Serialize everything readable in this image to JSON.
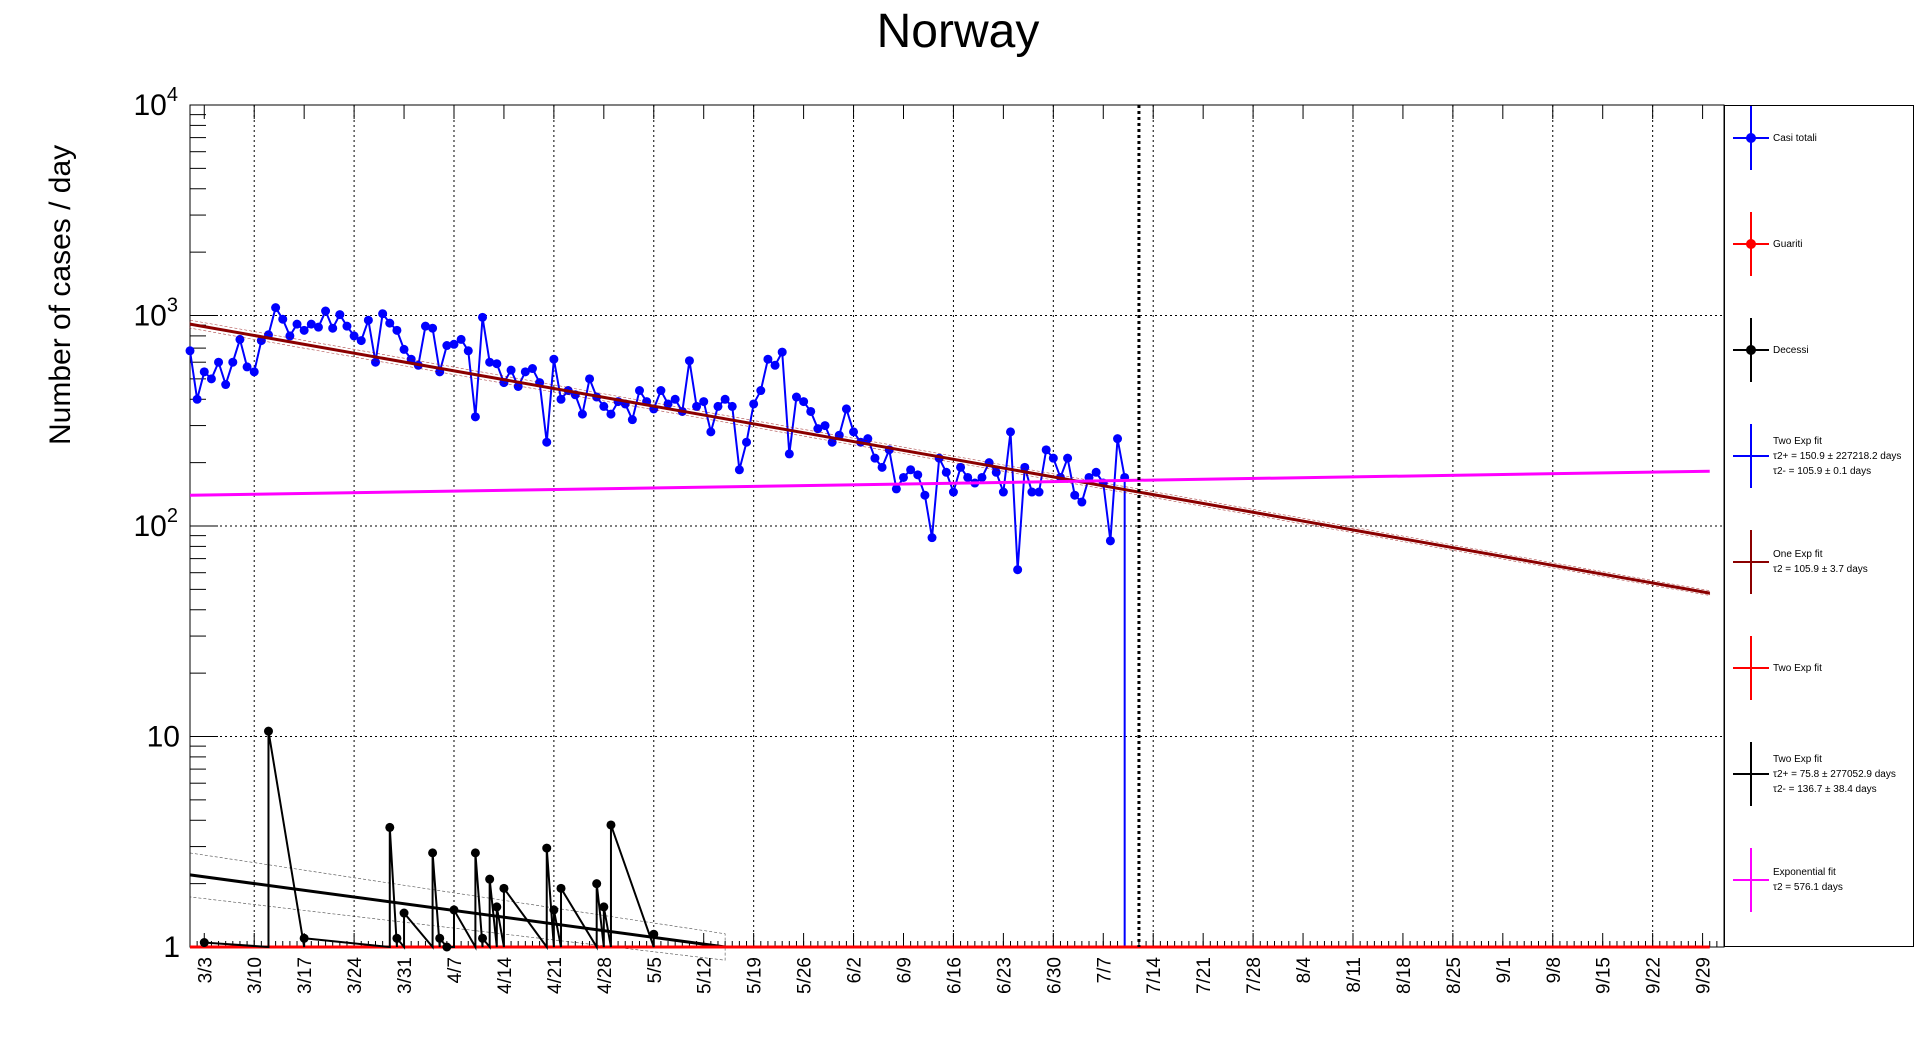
{
  "title": "Norway",
  "ylabel": "Number of cases / day",
  "legend": [
    {
      "label": "Casi totali",
      "lines": [],
      "color": "#0000ff",
      "marker": true,
      "icon": "blue-marker-icon"
    },
    {
      "label": "Guariti",
      "lines": [],
      "color": "#ff0000",
      "marker": true,
      "icon": "red-marker-icon"
    },
    {
      "label": "Decessi",
      "lines": [],
      "color": "#000000",
      "marker": true,
      "icon": "black-marker-icon"
    },
    {
      "label": "Two Exp fit",
      "lines": [
        "τ2+ = 150.9 ± 227218.2 days",
        "τ2- = 105.9 ± 0.1 days"
      ],
      "color": "#0000ff",
      "marker": false,
      "icon": "blue-line-icon"
    },
    {
      "label": "One Exp fit",
      "lines": [
        "τ2 = 105.9  ± 3.7 days"
      ],
      "color": "#8b0000",
      "marker": false,
      "icon": "darkred-line-icon"
    },
    {
      "label": "Two Exp fit",
      "lines": [],
      "color": "#ff0000",
      "marker": false,
      "icon": "red-line-icon"
    },
    {
      "label": "Two Exp fit",
      "lines": [
        "τ2+ = 75.8 ± 277052.9 days",
        "τ2- = 136.7 ± 38.4 days"
      ],
      "color": "#000000",
      "marker": false,
      "icon": "black-line-icon"
    },
    {
      "label": "Exponential fit",
      "lines": [
        "τ2 = 576.1  days"
      ],
      "color": "#ff00ff",
      "marker": false,
      "icon": "magenta-line-icon"
    }
  ],
  "chart_data": {
    "type": "line",
    "title": "Norway",
    "xlabel": "",
    "ylabel": "Number of cases / day",
    "yscale": "log",
    "ylim": [
      1,
      10000
    ],
    "y_tick_labels": [
      "1",
      "10",
      "10^2",
      "10^3",
      "10^4"
    ],
    "x_start": "2020-03-01",
    "x_tick_labels": [
      "3/3",
      "3/10",
      "3/17",
      "3/24",
      "3/31",
      "4/7",
      "4/14",
      "4/21",
      "4/28",
      "5/5",
      "5/12",
      "5/19",
      "5/26",
      "6/2",
      "6/9",
      "6/16",
      "6/23",
      "6/30",
      "7/7",
      "7/14",
      "7/21",
      "7/28",
      "8/4",
      "8/11",
      "8/18",
      "8/25",
      "9/1",
      "9/8",
      "9/15",
      "9/22",
      "9/29"
    ],
    "grid": true,
    "legend_position": "right",
    "vertical_line_date": "2020-07-12",
    "series": [
      {
        "name": "Casi totali",
        "color": "#0000ff",
        "marker": "circle",
        "start_date": "2020-03-01",
        "values": [
          680,
          400,
          540,
          500,
          600,
          470,
          600,
          770,
          570,
          540,
          760,
          810,
          1090,
          960,
          800,
          910,
          850,
          910,
          880,
          1050,
          870,
          1010,
          890,
          800,
          760,
          950,
          600,
          1020,
          920,
          850,
          690,
          620,
          580,
          890,
          870,
          540,
          720,
          730,
          770,
          680,
          330,
          980,
          600,
          590,
          480,
          550,
          460,
          540,
          560,
          480,
          250,
          620,
          400,
          440,
          420,
          340,
          500,
          410,
          370,
          340,
          390,
          380,
          320,
          440,
          390,
          360,
          440,
          380,
          400,
          350,
          610,
          370,
          390,
          280,
          370,
          400,
          370,
          185,
          250,
          380,
          440,
          620,
          580,
          670,
          220,
          410,
          390,
          350,
          290,
          300,
          250,
          270,
          360,
          280,
          250,
          260,
          210,
          190,
          230,
          150,
          170,
          185,
          175,
          140,
          88,
          210,
          180,
          145,
          190,
          170,
          160,
          170,
          200,
          180,
          145,
          280,
          62,
          190,
          145,
          145,
          230,
          210,
          170,
          210,
          140,
          130,
          170,
          180,
          160,
          85,
          260,
          170
        ]
      },
      {
        "name": "Decessi",
        "color": "#000000",
        "marker": "circle",
        "start_date": "2020-03-01",
        "points": [
          [
            "2020-03-03",
            1.05
          ],
          [
            "2020-03-12",
            10.6
          ],
          [
            "2020-03-17",
            1.1
          ],
          [
            "2020-03-29",
            3.7
          ],
          [
            "2020-03-30",
            1.1
          ],
          [
            "2020-03-31",
            1.45
          ],
          [
            "2020-04-04",
            2.8
          ],
          [
            "2020-04-05",
            1.1
          ],
          [
            "2020-04-06",
            1
          ],
          [
            "2020-04-07",
            1.5
          ],
          [
            "2020-04-10",
            2.8
          ],
          [
            "2020-04-11",
            1.1
          ],
          [
            "2020-04-12",
            2.1
          ],
          [
            "2020-04-13",
            1.55
          ],
          [
            "2020-04-14",
            1.9
          ],
          [
            "2020-04-20",
            2.95
          ],
          [
            "2020-04-21",
            1.5
          ],
          [
            "2020-04-22",
            1.9
          ],
          [
            "2020-04-27",
            2
          ],
          [
            "2020-04-28",
            1.55
          ],
          [
            "2020-04-29",
            3.8
          ],
          [
            "2020-05-05",
            1.15
          ]
        ]
      },
      {
        "name": "One Exp fit",
        "color": "#8b0000",
        "tau_days": 105.9,
        "x_range": [
          "2020-03-01",
          "2020-09-30"
        ],
        "y_at_start": 910,
        "y_at_end": 48
      },
      {
        "name": "Exponential fit",
        "color": "#ff00ff",
        "tau_days": 576.1,
        "x_range": [
          "2020-03-01",
          "2020-09-30"
        ],
        "y_at_start": 140,
        "y_at_end": 182
      },
      {
        "name": "Two Exp fit (black)",
        "color": "#000000",
        "x_range": [
          "2020-03-01",
          "2020-05-15"
        ],
        "y_at_start": 2.2,
        "y_at_end": 1.0
      },
      {
        "name": "Two Exp fit (red)",
        "color": "#ff0000",
        "x_range": [
          "2020-03-01",
          "2020-09-30"
        ],
        "y_at_start": 1,
        "y_at_end": 1
      },
      {
        "name": "Two Exp fit (blue)",
        "color": "#0000ff",
        "x_range": [
          "2020-07-12",
          "2020-07-13"
        ],
        "y_at_start": 170,
        "y_at_end": 1
      }
    ]
  }
}
